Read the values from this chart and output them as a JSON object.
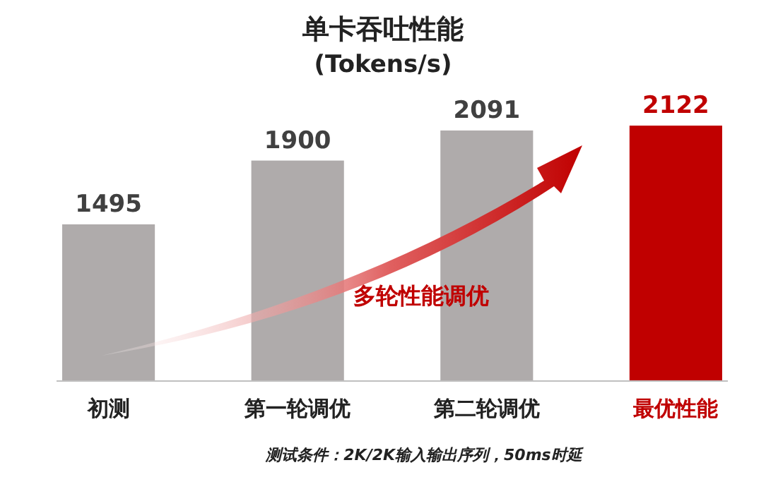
{
  "chart_data": {
    "type": "bar",
    "title": "单卡吞吐性能",
    "subtitle": "(Tokens/s)",
    "categories": [
      "初测",
      "第一轮调优",
      "第二轮调优",
      "最优性能"
    ],
    "values": [
      1495,
      1900,
      2091,
      2122
    ],
    "colors": [
      "#afabab",
      "#afabab",
      "#afabab",
      "#c00000"
    ],
    "ylim": [
      500,
      2122
    ],
    "tick_labels": "x",
    "data_labels": true,
    "annotations": [
      "多轮性能调优",
      "测试条件：2K/2K输入输出序列，50ms时延"
    ]
  }
}
